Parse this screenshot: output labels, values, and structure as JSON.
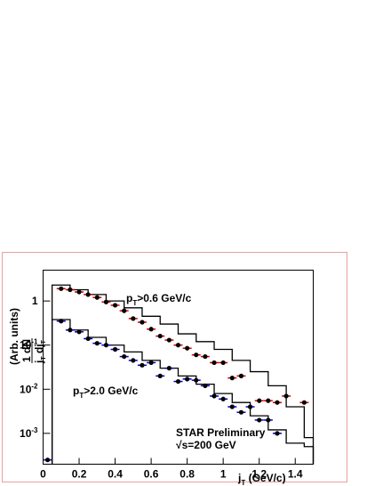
{
  "chart_data": {
    "type": "scatter",
    "xlim": [
      0,
      1.5
    ],
    "ylim": [
      0.0002,
      5
    ],
    "log_y": true,
    "xticks": [
      0,
      0.2,
      0.4,
      0.6,
      0.8,
      1,
      1.2,
      1.4
    ],
    "yticks": [
      {
        "value": 1,
        "label": "1"
      },
      {
        "value": 0.1,
        "label": "10",
        "exp": "-1"
      },
      {
        "value": 0.01,
        "label": "10",
        "exp": "-2"
      },
      {
        "value": 0.001,
        "label": "10",
        "exp": "-3"
      }
    ],
    "xlabel": {
      "base": "j",
      "sub": "T",
      "rest": " (GeV/c)"
    },
    "ylabel": {
      "units": "(Arb. units)",
      "num": "1 dN",
      "den_a": "j",
      "den_a_sub": "T",
      "den_b": " dj",
      "den_b_sub": "T"
    },
    "annotations": [
      {
        "base": "p",
        "sub": "T",
        "rest": ">0.6 GeV/c"
      },
      {
        "base": "p",
        "sub": "T",
        "rest": ">2.0 GeV/c"
      },
      {
        "text": "STAR Preliminary"
      },
      {
        "text": "√s=200 GeV"
      }
    ],
    "series": [
      {
        "color": "#d40000",
        "x": [
          0.1,
          0.15,
          0.2,
          0.25,
          0.3,
          0.35,
          0.4,
          0.45,
          0.5,
          0.55,
          0.6,
          0.65,
          0.7,
          0.75,
          0.8,
          0.85,
          0.9,
          0.95,
          1.0,
          1.05,
          1.1,
          1.2,
          1.25,
          1.3,
          1.35,
          1.45
        ],
        "values": [
          1.9,
          1.8,
          1.6,
          1.4,
          1.2,
          0.95,
          0.8,
          0.6,
          0.4,
          0.33,
          0.23,
          0.16,
          0.13,
          0.1,
          0.085,
          0.06,
          0.055,
          0.04,
          0.04,
          0.018,
          0.02,
          0.0055,
          0.0055,
          0.005,
          0.007,
          0.005
        ]
      },
      {
        "color": "#0000c8",
        "x": [
          0.025,
          0.1,
          0.15,
          0.2,
          0.25,
          0.3,
          0.35,
          0.4,
          0.45,
          0.5,
          0.55,
          0.6,
          0.65,
          0.7,
          0.75,
          0.8,
          0.85,
          0.9,
          0.95,
          1.0,
          1.05,
          1.1,
          1.15,
          1.2,
          1.25,
          1.3
        ],
        "values": [
          0.00025,
          0.35,
          0.22,
          0.2,
          0.14,
          0.11,
          0.1,
          0.08,
          0.055,
          0.045,
          0.035,
          0.04,
          0.02,
          0.03,
          0.015,
          0.017,
          0.016,
          0.012,
          0.007,
          0.006,
          0.004,
          0.003,
          0.004,
          0.002,
          0.002,
          0.001
        ]
      }
    ],
    "histograms": [
      {
        "color": "#000000",
        "bins": [
          0.05,
          0.15,
          0.25,
          0.35,
          0.45,
          0.55,
          0.65,
          0.75,
          0.85,
          0.95,
          1.05,
          1.15,
          1.25,
          1.35,
          1.45,
          1.5
        ],
        "counts": [
          2.3,
          1.8,
          1.4,
          1.0,
          0.7,
          0.45,
          0.3,
          0.18,
          0.12,
          0.08,
          0.045,
          0.025,
          0.012,
          0.004,
          0.0008
        ]
      },
      {
        "color": "#000000",
        "bins": [
          0.05,
          0.15,
          0.25,
          0.35,
          0.45,
          0.55,
          0.65,
          0.75,
          0.85,
          0.95,
          1.05,
          1.15,
          1.25,
          1.35,
          1.45,
          1.5
        ],
        "counts": [
          0.38,
          0.22,
          0.15,
          0.1,
          0.07,
          0.045,
          0.03,
          0.02,
          0.013,
          0.008,
          0.005,
          0.0025,
          0.0012,
          0.0006,
          0.0005
        ]
      }
    ]
  }
}
